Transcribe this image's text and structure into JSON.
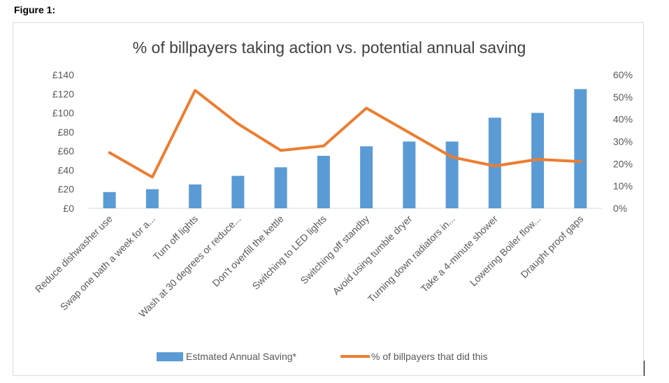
{
  "figure_label": "Figure 1:",
  "chart_data": {
    "type": "bar+line",
    "title": "% of billpayers taking action vs. potential annual saving",
    "categories": [
      "Reduce dishwasher use",
      "Swap one bath a week for a...",
      "Turn off lights",
      "Wash at 30 degrees or reduce...",
      "Don't overfill the kettle",
      "Switching to LED lights",
      "Switching off standby",
      "Avoid using tumble dryer",
      "Turning down radiators in...",
      "Take a 4-minute shower",
      "Lowering Boiler flow...",
      "Draught proof gaps"
    ],
    "series": [
      {
        "name": "Estmated Annual Saving*",
        "kind": "bar",
        "axis": "left",
        "color": "#5b9bd5",
        "values": [
          17,
          20,
          25,
          34,
          43,
          55,
          65,
          70,
          70,
          95,
          100,
          125
        ]
      },
      {
        "name": "% of billpayers that did this",
        "kind": "line",
        "axis": "right",
        "color": "#ed7d31",
        "values": [
          25,
          14,
          53,
          38,
          26,
          28,
          45,
          34,
          23,
          19,
          22,
          21
        ]
      }
    ],
    "y_left": {
      "min": 0,
      "max": 140,
      "step": 20,
      "ticks": [
        "£0",
        "£20",
        "£40",
        "£60",
        "£80",
        "£100",
        "£120",
        "£140"
      ]
    },
    "y_right": {
      "min": 0,
      "max": 60,
      "step": 10,
      "ticks": [
        "0%",
        "10%",
        "20%",
        "30%",
        "40%",
        "50%",
        "60%"
      ]
    },
    "grid": false,
    "legend_position": "bottom"
  }
}
